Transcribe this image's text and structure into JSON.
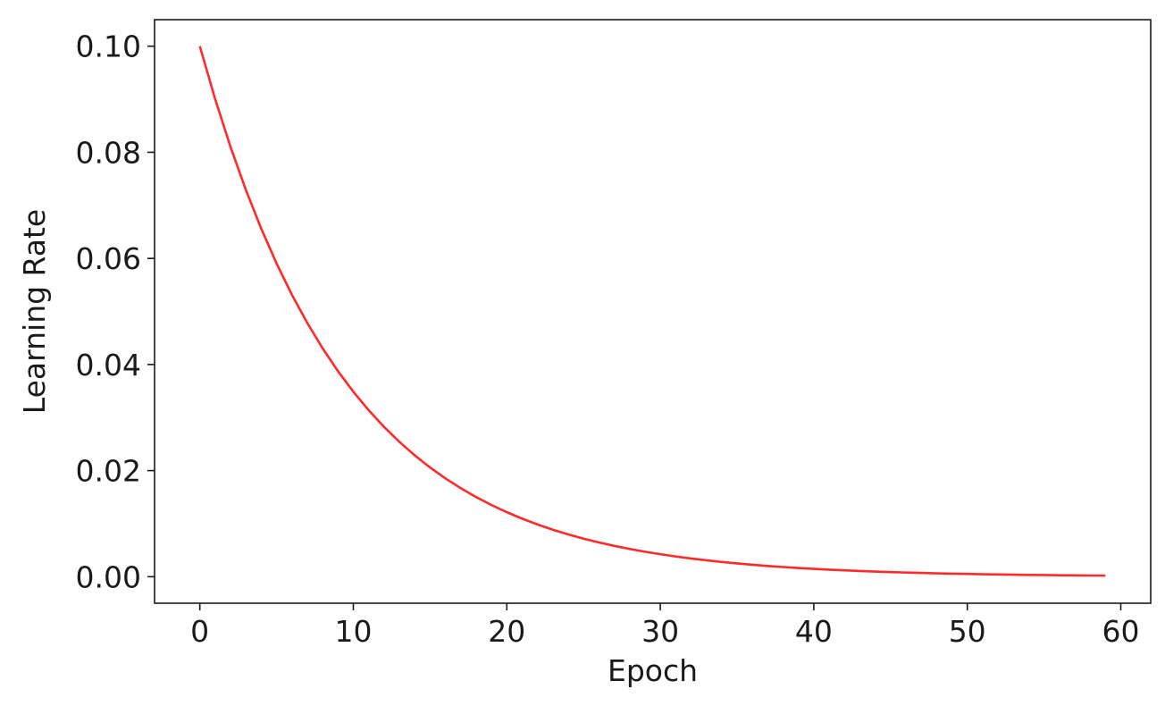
{
  "chart_data": {
    "type": "line",
    "title": "",
    "xlabel": "Epoch",
    "ylabel": "Learning Rate",
    "xlim": [
      -2.95,
      61.95
    ],
    "ylim": [
      -0.005,
      0.105
    ],
    "x_ticks": [
      0,
      10,
      20,
      30,
      40,
      50,
      60
    ],
    "x_tick_labels": [
      "0",
      "10",
      "20",
      "30",
      "40",
      "50",
      "60"
    ],
    "y_ticks": [
      0.0,
      0.02,
      0.04,
      0.06,
      0.08,
      0.1
    ],
    "y_tick_labels": [
      "0.00",
      "0.02",
      "0.04",
      "0.06",
      "0.08",
      "0.10"
    ],
    "grid": false,
    "legend": "none",
    "series": [
      {
        "color": "#ff2a2a",
        "x": [
          0,
          1,
          2,
          3,
          4,
          5,
          6,
          7,
          8,
          9,
          10,
          11,
          12,
          13,
          14,
          15,
          16,
          17,
          18,
          19,
          20,
          21,
          22,
          23,
          24,
          25,
          26,
          27,
          28,
          29,
          30,
          31,
          32,
          33,
          34,
          35,
          36,
          37,
          38,
          39,
          40,
          41,
          42,
          43,
          44,
          45,
          46,
          47,
          48,
          49,
          50,
          51,
          52,
          53,
          54,
          55,
          56,
          57,
          58,
          59
        ],
        "y": [
          0.1,
          0.09,
          0.081,
          0.0729,
          0.06561,
          0.05905,
          0.05314,
          0.04783,
          0.04305,
          0.03874,
          0.03487,
          0.03138,
          0.02824,
          0.02542,
          0.02288,
          0.02059,
          0.01853,
          0.01668,
          0.01501,
          0.01351,
          0.01216,
          0.01094,
          0.00985,
          0.00886,
          0.00798,
          0.00718,
          0.00646,
          0.00581,
          0.00523,
          0.00471,
          0.00424,
          0.00382,
          0.00343,
          0.00309,
          0.00278,
          0.0025,
          0.00225,
          0.00203,
          0.00182,
          0.00164,
          0.00148,
          0.00133,
          0.0012,
          0.00108,
          0.00097,
          0.00087,
          0.00079,
          0.00071,
          0.00064,
          0.00057,
          0.00052,
          0.00046,
          0.00042,
          0.00038,
          0.00034,
          0.00031,
          0.00027,
          0.00025,
          0.00022,
          0.0002
        ]
      }
    ]
  }
}
